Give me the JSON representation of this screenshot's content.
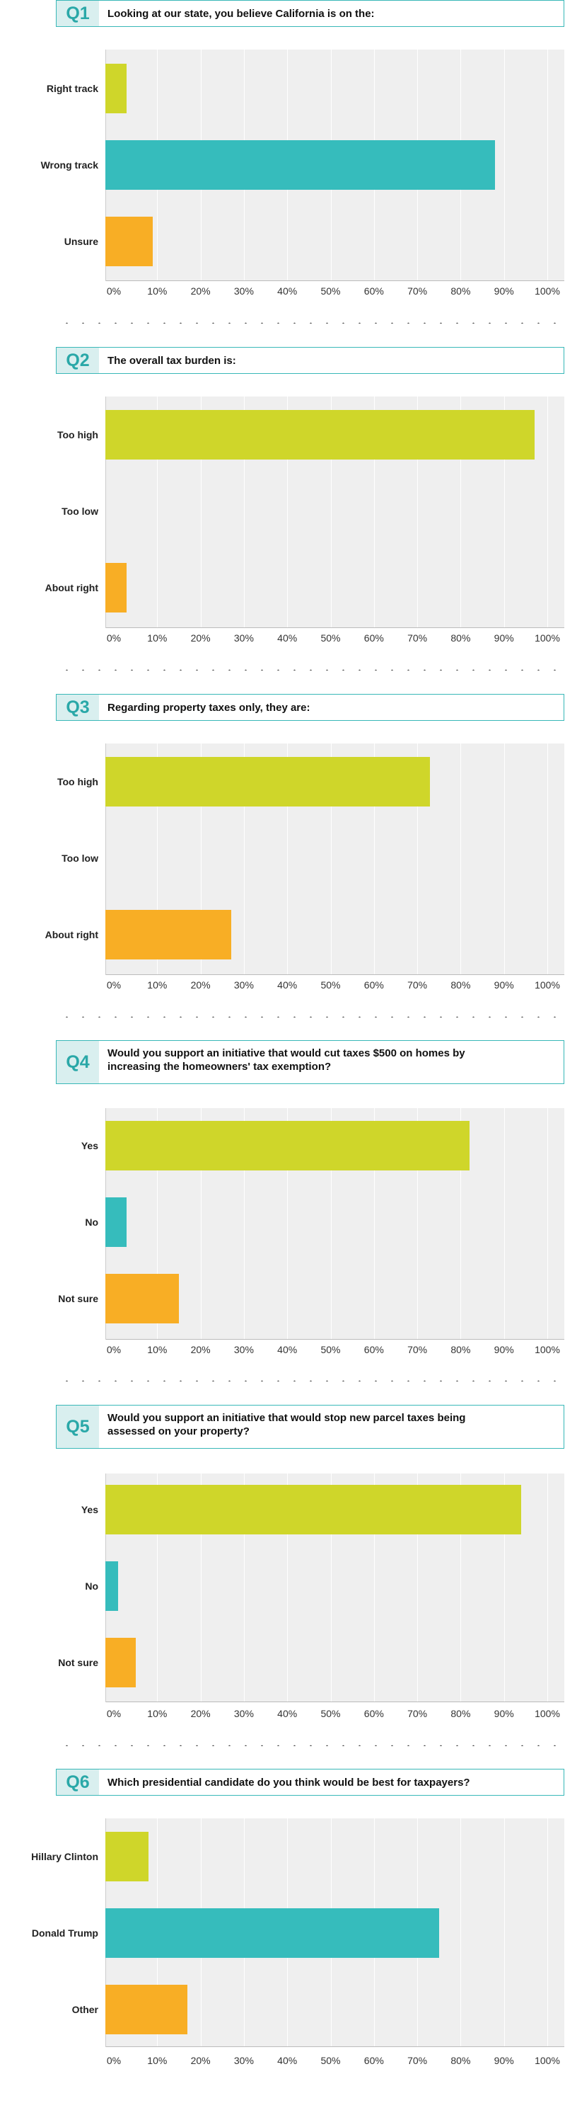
{
  "colors": {
    "accent": "#39b8b8",
    "bar_yellow": "#cfd62a",
    "bar_teal": "#36bcbc",
    "bar_orange": "#f8ae25",
    "plot_bg": "#efefef"
  },
  "chart_data": [
    {
      "type": "bar",
      "id": "Q1",
      "title": "Looking at our state, you believe California is on the:",
      "categories": [
        "Right track",
        "Wrong track",
        "Unsure"
      ],
      "values": [
        3,
        88,
        9
      ],
      "xlim": [
        0,
        100
      ],
      "xticks": [
        "0%",
        "10%",
        "20%",
        "30%",
        "40%",
        "50%",
        "60%",
        "70%",
        "80%",
        "90%",
        "100%"
      ],
      "grid": true
    },
    {
      "type": "bar",
      "id": "Q2",
      "title": "The overall tax burden is:",
      "categories": [
        "Too high",
        "Too low",
        "About right"
      ],
      "values": [
        97,
        0,
        3
      ],
      "xlim": [
        0,
        100
      ],
      "xticks": [
        "0%",
        "10%",
        "20%",
        "30%",
        "40%",
        "50%",
        "60%",
        "70%",
        "80%",
        "90%",
        "100%"
      ],
      "grid": true
    },
    {
      "type": "bar",
      "id": "Q3",
      "title": "Regarding property taxes only, they are:",
      "categories": [
        "Too high",
        "Too low",
        "About right"
      ],
      "values": [
        73,
        0,
        27
      ],
      "xlim": [
        0,
        100
      ],
      "xticks": [
        "0%",
        "10%",
        "20%",
        "30%",
        "40%",
        "50%",
        "60%",
        "70%",
        "80%",
        "90%",
        "100%"
      ],
      "grid": true
    },
    {
      "type": "bar",
      "id": "Q4",
      "title": "Would you support an initiative that would cut taxes $500 on homes by increasing the homeowners' tax exemption?",
      "categories": [
        "Yes",
        "No",
        "Not sure"
      ],
      "values": [
        82,
        3,
        15
      ],
      "xlim": [
        0,
        100
      ],
      "xticks": [
        "0%",
        "10%",
        "20%",
        "30%",
        "40%",
        "50%",
        "60%",
        "70%",
        "80%",
        "90%",
        "100%"
      ],
      "grid": true
    },
    {
      "type": "bar",
      "id": "Q5",
      "title": "Would you support an initiative that would stop new parcel taxes being assessed on your property?",
      "categories": [
        "Yes",
        "No",
        "Not sure"
      ],
      "values": [
        94,
        1,
        5
      ],
      "xlim": [
        0,
        100
      ],
      "xticks": [
        "0%",
        "10%",
        "20%",
        "30%",
        "40%",
        "50%",
        "60%",
        "70%",
        "80%",
        "90%",
        "100%"
      ],
      "grid": true
    },
    {
      "type": "bar",
      "id": "Q6",
      "title": "Which presidential candidate do you think would be best for taxpayers?",
      "categories": [
        "Hillary Clinton",
        "Donald Trump",
        "Other"
      ],
      "values": [
        8,
        75,
        17
      ],
      "xlim": [
        0,
        100
      ],
      "xticks": [
        "0%",
        "10%",
        "20%",
        "30%",
        "40%",
        "50%",
        "60%",
        "70%",
        "80%",
        "90%",
        "100%"
      ],
      "grid": true
    }
  ]
}
